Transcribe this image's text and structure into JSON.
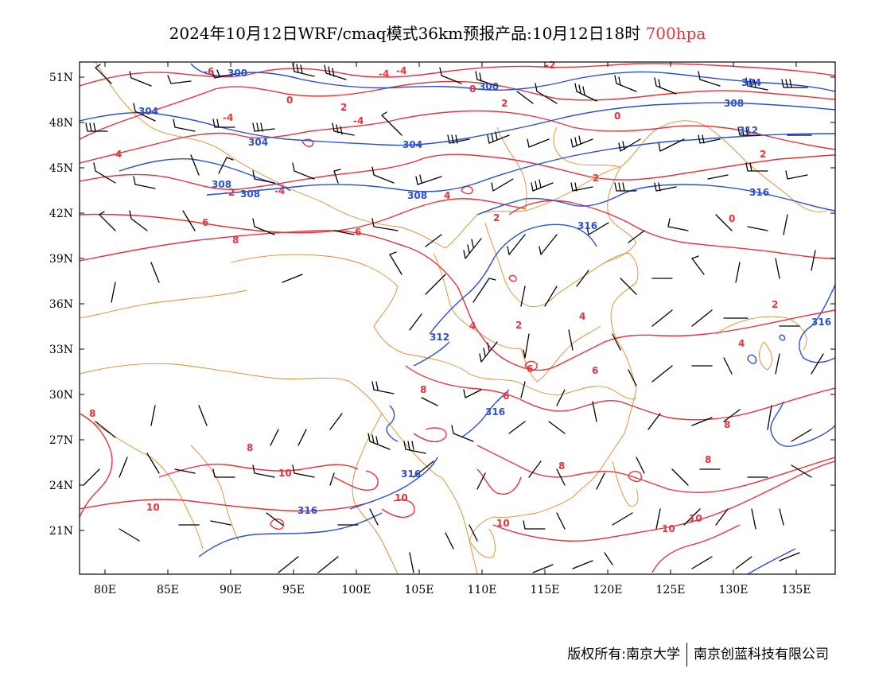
{
  "title": {
    "main": "2024年10月12日WRF/cmaq模式36km预报产品:10月12日18时",
    "level": "700hpa",
    "level_color": "#e8333a"
  },
  "axes": {
    "lon_labels": [
      "80E",
      "85E",
      "90E",
      "95E",
      "100E",
      "105E",
      "110E",
      "115E",
      "120E",
      "125E",
      "130E",
      "135E"
    ],
    "lat_labels": [
      "51N",
      "48N",
      "45N",
      "42N",
      "39N",
      "36N",
      "33N",
      "30N",
      "27N",
      "24N",
      "21N"
    ]
  },
  "legend_colors": {
    "height_contours": "#2a4fd8",
    "temperature_contours": "#e8333a",
    "boundaries": "#e08a2a",
    "wind_barbs": "#000000"
  },
  "contour_labels": {
    "temperature": [
      "-6",
      "-4",
      "-2",
      "0",
      "2",
      "4",
      "6",
      "8",
      "10"
    ],
    "height": [
      "300",
      "304",
      "308",
      "312",
      "316"
    ]
  },
  "footer": {
    "left": "版权所有:南京大学",
    "right": "南京创蓝科技有限公司"
  }
}
